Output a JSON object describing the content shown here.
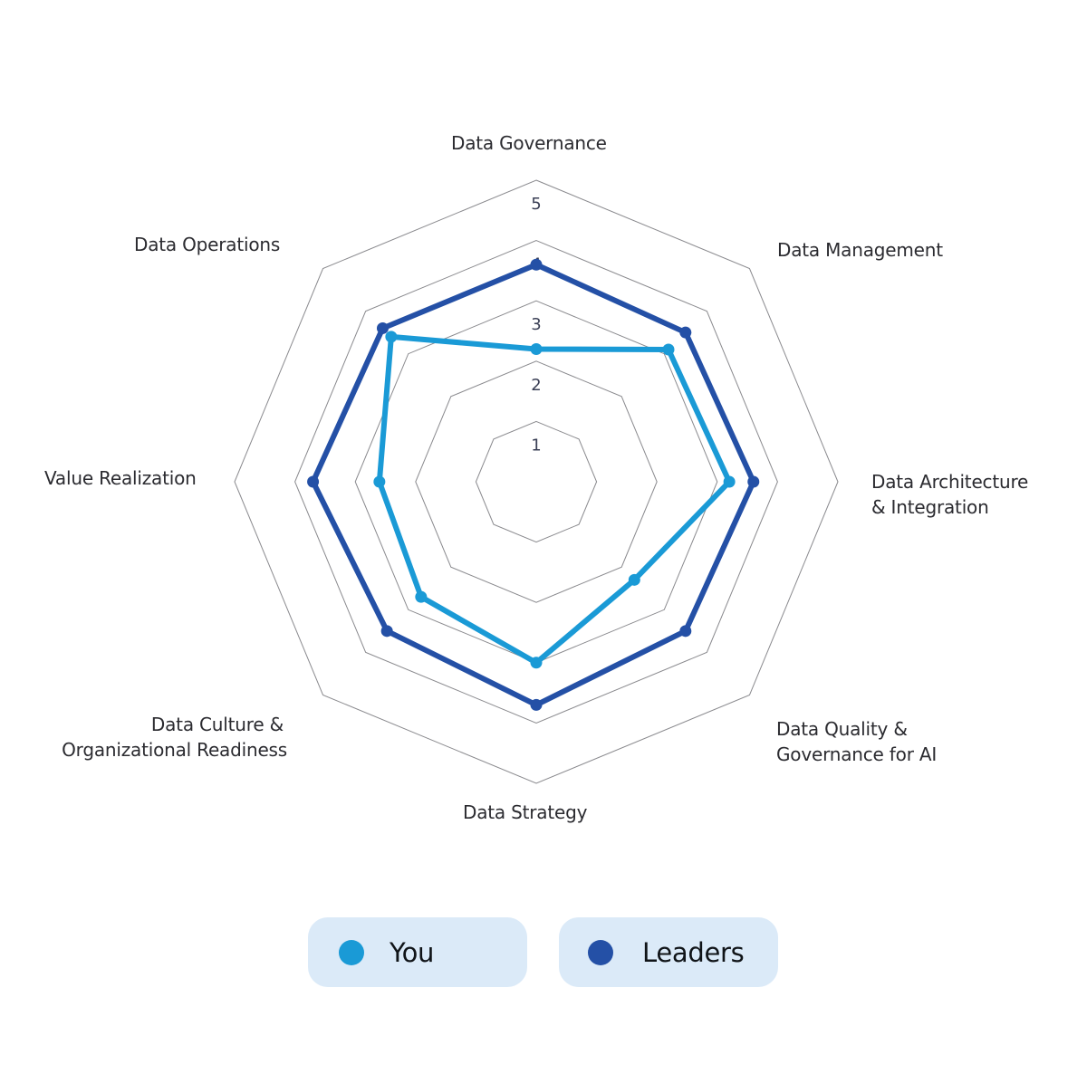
{
  "chart_data": {
    "type": "radar",
    "title": "",
    "categories": [
      "Data Governance",
      "Data Management",
      "Data Architecture & Integration",
      "Data Quality & Governance for AI",
      "Data Strategy",
      "Data Culture & Organizational Readiness",
      "Value Realization",
      "Data Operations"
    ],
    "series": [
      {
        "name": "You",
        "color": "#1a9ad6",
        "values": [
          2.2,
          3.1,
          3.2,
          2.3,
          3.0,
          2.7,
          2.6,
          3.4
        ]
      },
      {
        "name": "Leaders",
        "color": "#2450a6",
        "values": [
          3.6,
          3.5,
          3.6,
          3.5,
          3.7,
          3.5,
          3.7,
          3.6
        ]
      }
    ],
    "radial_ticks": [
      "1",
      "2",
      "3",
      "4",
      "5"
    ],
    "range": [
      0,
      5
    ],
    "grid": true,
    "legend_position": "bottom"
  },
  "labels": {
    "governance": "Data Governance",
    "management": "Data Management",
    "architecture_1": "Data Architecture",
    "architecture_2": "& Integration",
    "quality_1": "Data Quality &",
    "quality_2": "Governance for AI",
    "strategy": "Data Strategy",
    "culture_1": "Data Culture &",
    "culture_2": "Organizational Readiness",
    "value": "Value Realization",
    "operations": "Data Operations"
  },
  "legend": {
    "you": {
      "label": "You",
      "color": "#1a9ad6"
    },
    "leaders": {
      "label": "Leaders",
      "color": "#2450a6"
    }
  }
}
